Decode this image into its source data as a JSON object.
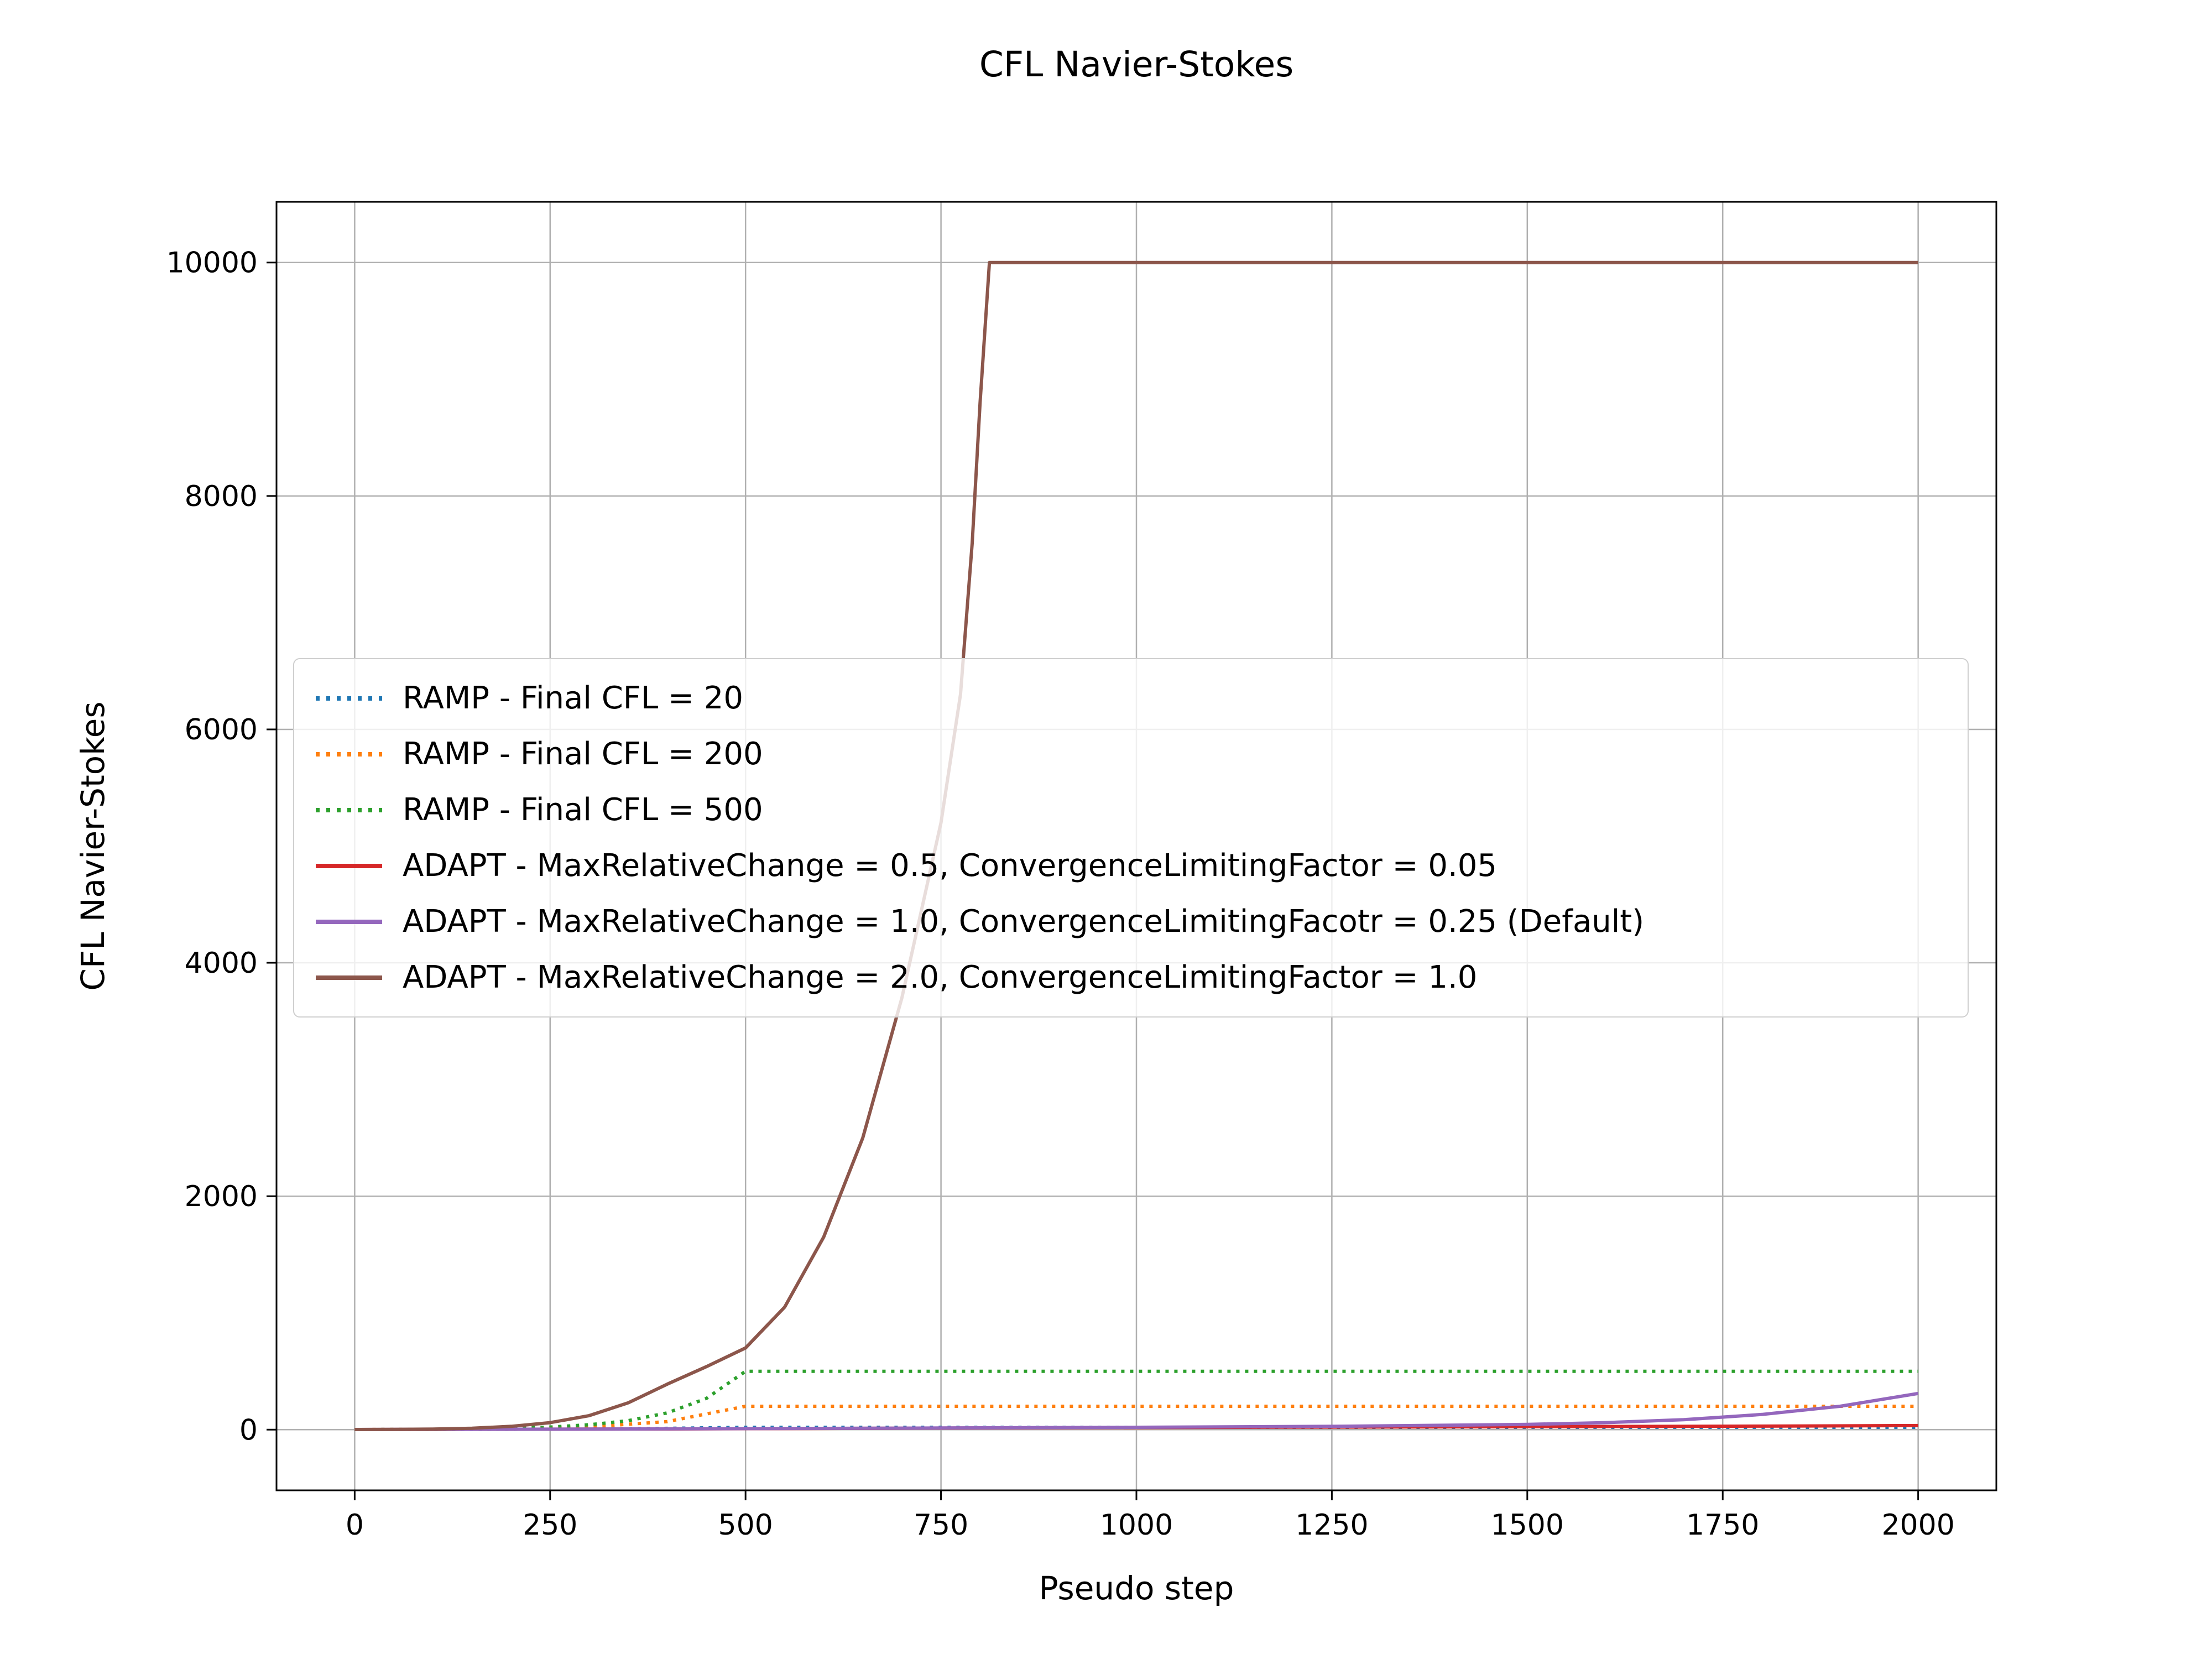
{
  "chart_data": {
    "type": "line",
    "title": "CFL Navier-Stokes",
    "xlabel": "Pseudo step",
    "ylabel": "CFL Navier-Stokes",
    "xlim": [
      -100,
      2100
    ],
    "ylim": [
      -520,
      10520
    ],
    "xticks": [
      0,
      250,
      500,
      750,
      1000,
      1250,
      1500,
      1750,
      2000
    ],
    "yticks": [
      0,
      2000,
      4000,
      6000,
      8000,
      10000
    ],
    "grid": true,
    "grid_color": "#b0b0b0",
    "legend_position": "center-left",
    "series": [
      {
        "name": "RAMP - Final CFL = 20",
        "color": "#1f77b4",
        "style": "dotted",
        "x": [
          0,
          100,
          200,
          300,
          400,
          500,
          2000
        ],
        "y": [
          1,
          1.8,
          3.3,
          6,
          11,
          20,
          20
        ]
      },
      {
        "name": "RAMP - Final CFL = 200",
        "color": "#ff7f0e",
        "style": "dotted",
        "x": [
          0,
          100,
          200,
          300,
          400,
          500,
          2000
        ],
        "y": [
          1,
          2.9,
          8.3,
          24,
          69,
          200,
          200
        ]
      },
      {
        "name": "RAMP - Final CFL = 500",
        "color": "#2ca02c",
        "style": "dotted",
        "x": [
          0,
          50,
          100,
          150,
          200,
          250,
          300,
          350,
          400,
          450,
          500,
          2000
        ],
        "y": [
          1,
          1.9,
          3.5,
          6.4,
          12,
          22,
          42,
          77,
          144,
          268,
          500,
          500
        ]
      },
      {
        "name": "ADAPT - MaxRelativeChange = 0.5, ConvergenceLimitingFactor = 0.05",
        "color": "#d62728",
        "style": "solid",
        "x": [
          0,
          200,
          400,
          600,
          800,
          1000,
          1200,
          1400,
          1600,
          1800,
          2000
        ],
        "y": [
          1,
          3,
          6,
          10,
          14,
          18,
          21,
          24,
          27,
          30,
          35
        ]
      },
      {
        "name": "ADAPT - MaxRelativeChange = 1.0, ConvergenceLimitingFacotr = 0.25 (Default)",
        "color": "#9467bd",
        "style": "solid",
        "x": [
          0,
          250,
          500,
          750,
          1000,
          1250,
          1500,
          1600,
          1700,
          1800,
          1900,
          2000
        ],
        "y": [
          1,
          4,
          9,
          14,
          20,
          28,
          45,
          60,
          85,
          130,
          200,
          310
        ]
      },
      {
        "name": "ADAPT - MaxRelativeChange = 2.0, ConvergenceLimitingFactor = 1.0",
        "color": "#8c564b",
        "style": "solid",
        "x": [
          0,
          50,
          100,
          150,
          200,
          250,
          300,
          350,
          400,
          450,
          500,
          550,
          600,
          650,
          700,
          750,
          775,
          790,
          800,
          812,
          900,
          1000,
          1250,
          1500,
          1750,
          2000
        ],
        "y": [
          1,
          2,
          5,
          12,
          28,
          60,
          120,
          230,
          390,
          540,
          700,
          1050,
          1650,
          2500,
          3700,
          5200,
          6300,
          7600,
          8800,
          10000,
          10000,
          10000,
          10000,
          10000,
          10000,
          10000
        ]
      }
    ]
  }
}
